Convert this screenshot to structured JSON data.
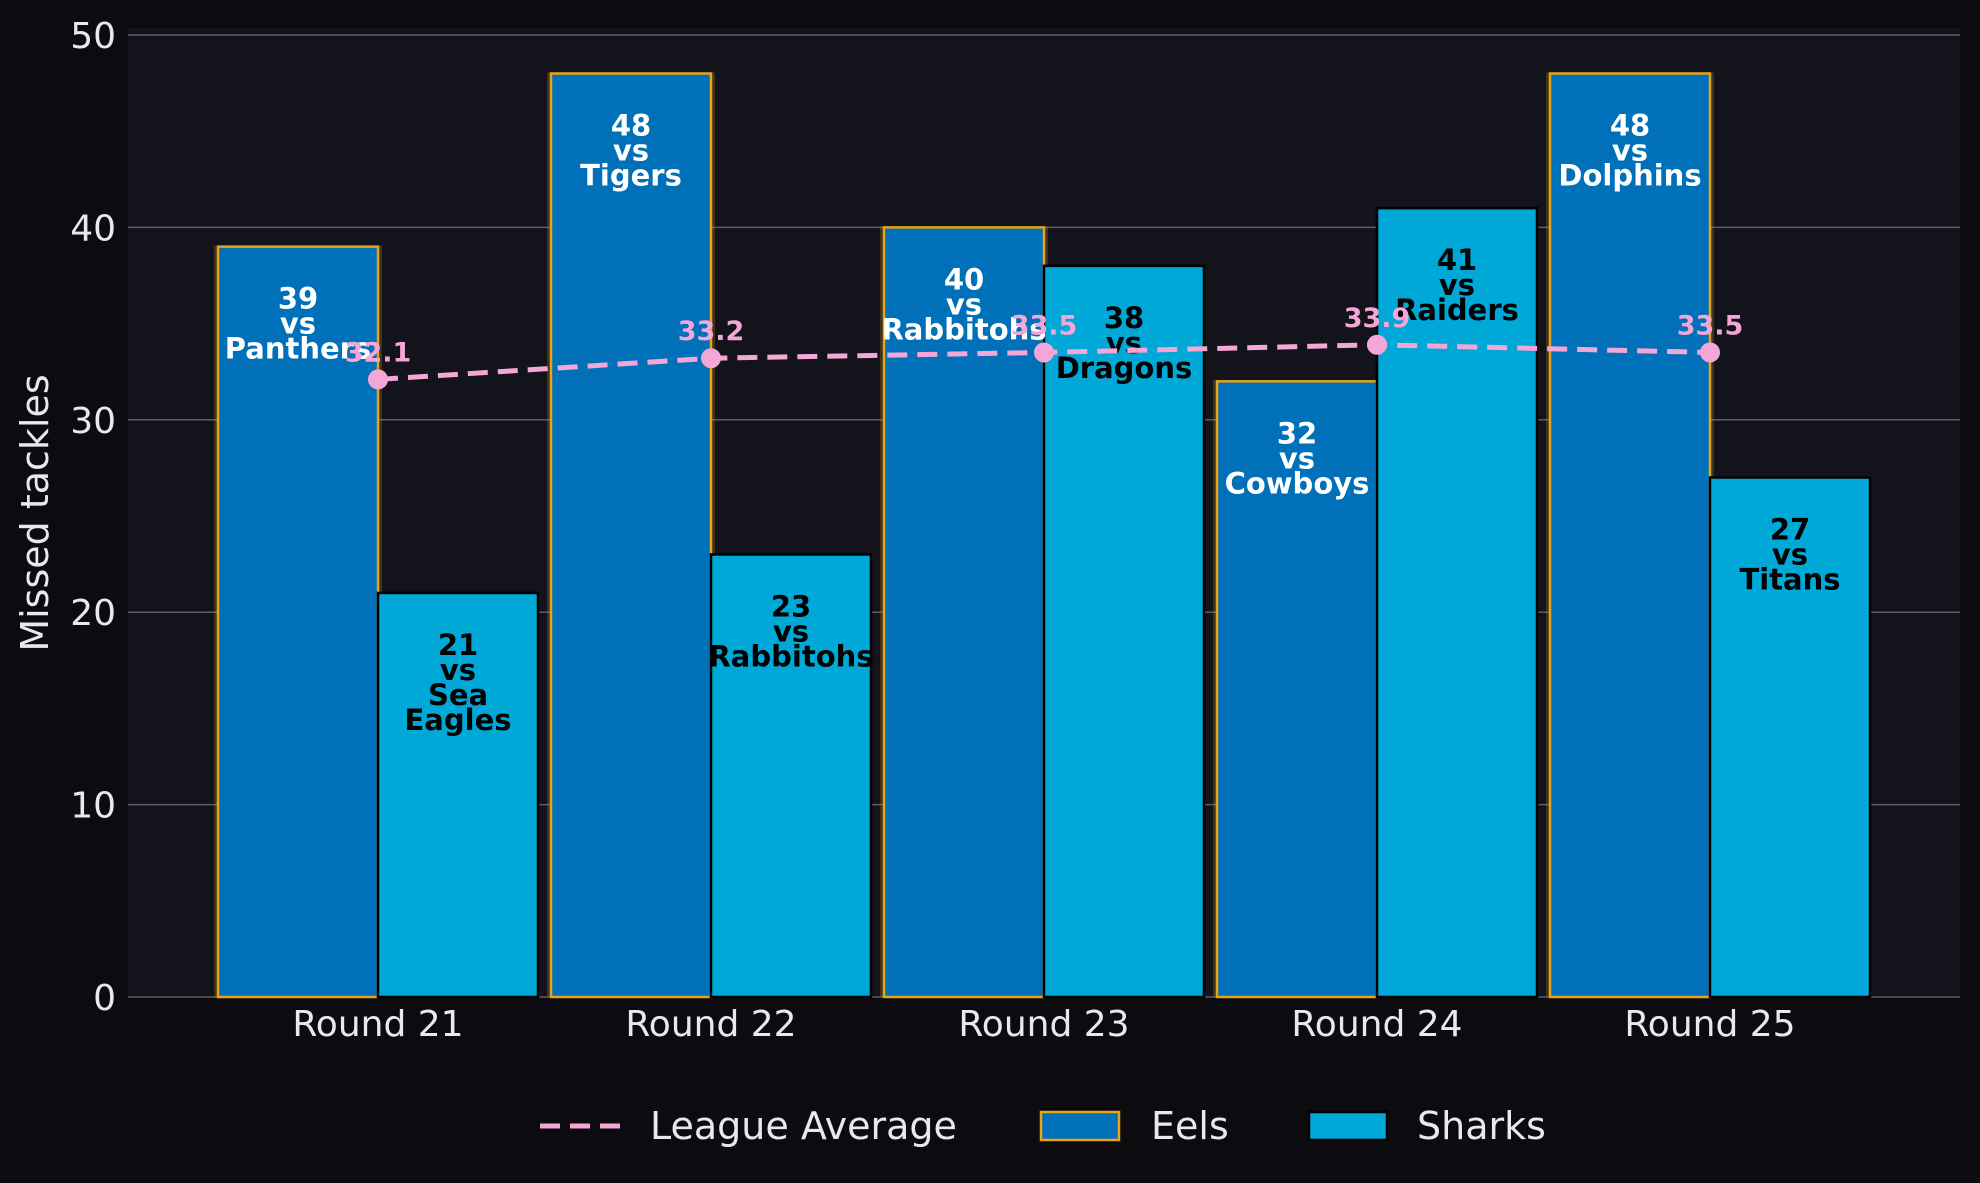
{
  "chart_data": {
    "type": "bar",
    "title": "",
    "xlabel": "",
    "ylabel": "Missed tackles",
    "ylim": [
      0,
      50
    ],
    "yticks": [
      0,
      10,
      20,
      30,
      40,
      50
    ],
    "grid": true,
    "legend_position": "bottom-center",
    "categories": [
      "Round 21",
      "Round 22",
      "Round 23",
      "Round 24",
      "Round 25"
    ],
    "series": [
      {
        "name": "Eels",
        "type": "bar",
        "color": "#0070b8",
        "edge_color": "#e8a317",
        "values": [
          39,
          48,
          40,
          32,
          48
        ],
        "labels": [
          [
            "39",
            "vs",
            "Panthers"
          ],
          [
            "48",
            "vs",
            "Tigers"
          ],
          [
            "40",
            "vs",
            "Rabbitohs"
          ],
          [
            "32",
            "vs",
            "Cowboys"
          ],
          [
            "48",
            "vs",
            "Dolphins"
          ]
        ]
      },
      {
        "name": "Sharks",
        "type": "bar",
        "color": "#00a8d8",
        "edge_color": "#000000",
        "values": [
          21,
          23,
          38,
          41,
          27
        ],
        "labels": [
          [
            "21",
            "vs",
            "Sea",
            "Eagles"
          ],
          [
            "23",
            "vs",
            "Rabbitohs"
          ],
          [
            "38",
            "vs",
            "Dragons"
          ],
          [
            "41",
            "vs",
            "Raiders"
          ],
          [
            "27",
            "vs",
            "Titans"
          ]
        ]
      },
      {
        "name": "League Average",
        "type": "line",
        "style": "dashed",
        "color": "#f4a6d7",
        "values": [
          32.1,
          33.2,
          33.5,
          33.9,
          33.5
        ],
        "labels": [
          "32.1",
          "33.2",
          "33.5",
          "33.9",
          "33.5"
        ]
      }
    ]
  }
}
